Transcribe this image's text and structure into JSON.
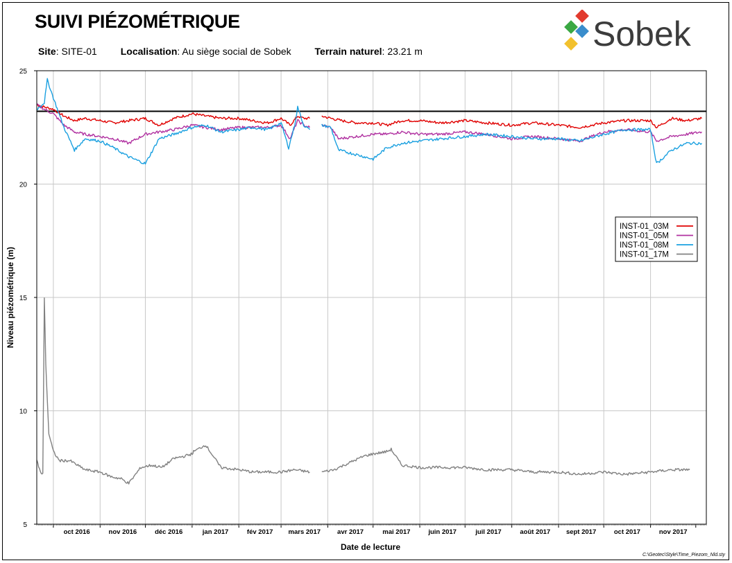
{
  "title": "SUIVI PIÉZOMÉTRIQUE",
  "info": {
    "site_label": "Site",
    "site_value": "SITE-01",
    "loc_label": "Localisation",
    "loc_value": "Au siège social de Sobek",
    "terrain_label": "Terrain naturel",
    "terrain_value": "23.21 m"
  },
  "logo": {
    "text": "Sobek",
    "colors": [
      "#e23b2e",
      "#3aa843",
      "#3a8dcc",
      "#f2c12e"
    ]
  },
  "footer": "C:\\Geotec\\Style\\Time_Piezom_Nld.sty",
  "chart_data": {
    "type": "line",
    "title": "",
    "xlabel": "Date de lecture",
    "ylabel": "Niveau piézométrique (m)",
    "xlim": [
      "2016-09-20",
      "2017-12-08"
    ],
    "ylim": [
      5,
      25
    ],
    "yticks": [
      5,
      10,
      15,
      20,
      25
    ],
    "xtick_labels": [
      "oct 2016",
      "nov 2016",
      "déc 2016",
      "jan 2017",
      "fév 2017",
      "mars 2017",
      "avr 2017",
      "mai 2017",
      "juin 2017",
      "juil 2017",
      "août 2017",
      "sept 2017",
      "oct 2017",
      "nov 2017"
    ],
    "xtick_dates": [
      "2016-10-01",
      "2016-11-01",
      "2016-12-01",
      "2017-01-01",
      "2017-02-01",
      "2017-03-01",
      "2017-04-01",
      "2017-05-01",
      "2017-06-01",
      "2017-07-01",
      "2017-08-01",
      "2017-09-01",
      "2017-10-01",
      "2017-11-01"
    ],
    "grid": true,
    "legend_position": "right",
    "reference_line": {
      "value": 23.21,
      "color": "#000000"
    },
    "series": [
      {
        "name": "INST-01_03M",
        "color": "#e00000",
        "x": [
          "2016-09-20",
          "2016-09-25",
          "2016-10-01",
          "2016-10-08",
          "2016-10-15",
          "2016-10-22",
          "2016-11-01",
          "2016-11-10",
          "2016-11-20",
          "2016-12-01",
          "2016-12-10",
          "2016-12-20",
          "2017-01-01",
          "2017-01-10",
          "2017-01-20",
          "2017-02-01",
          "2017-02-10",
          "2017-02-20",
          "2017-03-01",
          "2017-03-07",
          "2017-03-12",
          "2017-03-16",
          "2017-03-20",
          null,
          "2017-03-28",
          "2017-04-03",
          "2017-04-10",
          "2017-04-20",
          "2017-05-01",
          "2017-05-10",
          "2017-05-20",
          "2017-06-01",
          "2017-06-15",
          "2017-07-01",
          "2017-07-15",
          "2017-08-01",
          "2017-08-15",
          "2017-09-01",
          "2017-09-15",
          "2017-10-01",
          "2017-10-15",
          "2017-11-01",
          "2017-11-05",
          "2017-11-15",
          "2017-11-25",
          "2017-12-05"
        ],
        "y": [
          23.5,
          23.4,
          23.3,
          23.0,
          22.8,
          22.9,
          22.8,
          22.7,
          22.8,
          22.9,
          22.6,
          22.9,
          23.1,
          23.0,
          22.9,
          22.9,
          22.8,
          22.7,
          22.9,
          22.6,
          23.0,
          22.9,
          22.9,
          null,
          23.0,
          22.9,
          22.8,
          22.7,
          22.7,
          22.6,
          22.8,
          22.8,
          22.7,
          22.8,
          22.7,
          22.6,
          22.7,
          22.6,
          22.5,
          22.7,
          22.8,
          22.8,
          22.5,
          22.9,
          22.8,
          22.9
        ]
      },
      {
        "name": "INST-01_05M",
        "color": "#b030a0",
        "x": [
          "2016-09-20",
          "2016-09-25",
          "2016-10-01",
          "2016-10-08",
          "2016-10-15",
          "2016-10-22",
          "2016-11-01",
          "2016-11-10",
          "2016-11-20",
          "2016-12-01",
          "2016-12-10",
          "2016-12-20",
          "2017-01-01",
          "2017-01-10",
          "2017-01-20",
          "2017-02-01",
          "2017-02-10",
          "2017-02-20",
          "2017-03-01",
          "2017-03-07",
          "2017-03-12",
          "2017-03-16",
          "2017-03-20",
          null,
          "2017-03-28",
          "2017-04-03",
          "2017-04-08",
          "2017-04-20",
          "2017-05-01",
          "2017-05-10",
          "2017-05-20",
          "2017-06-01",
          "2017-06-15",
          "2017-07-01",
          "2017-07-15",
          "2017-08-01",
          "2017-08-15",
          "2017-09-01",
          "2017-09-15",
          "2017-10-01",
          "2017-10-15",
          "2017-11-01",
          "2017-11-05",
          "2017-11-15",
          "2017-11-25",
          "2017-12-05"
        ],
        "y": [
          23.5,
          23.3,
          23.1,
          22.6,
          22.3,
          22.2,
          22.1,
          22.0,
          21.8,
          22.2,
          22.3,
          22.4,
          22.6,
          22.5,
          22.4,
          22.5,
          22.5,
          22.5,
          22.6,
          22.0,
          22.8,
          22.6,
          22.5,
          null,
          22.6,
          22.5,
          22.0,
          22.1,
          22.2,
          22.2,
          22.3,
          22.2,
          22.2,
          22.3,
          22.2,
          22.0,
          22.1,
          22.0,
          21.9,
          22.3,
          22.4,
          22.3,
          21.9,
          22.1,
          22.2,
          22.3
        ]
      },
      {
        "name": "INST-01_08M",
        "color": "#1aa0e0",
        "x": [
          "2016-09-20",
          "2016-09-25",
          "2016-09-27",
          "2016-10-01",
          "2016-10-08",
          "2016-10-15",
          "2016-10-22",
          "2016-11-01",
          "2016-11-10",
          "2016-11-20",
          "2016-12-01",
          "2016-12-10",
          "2016-12-20",
          "2017-01-01",
          "2017-01-10",
          "2017-01-20",
          "2017-02-01",
          "2017-02-10",
          "2017-02-20",
          "2017-03-01",
          "2017-03-06",
          "2017-03-10",
          "2017-03-12",
          "2017-03-16",
          "2017-03-20",
          null,
          "2017-03-28",
          "2017-04-03",
          "2017-04-08",
          "2017-04-20",
          "2017-05-01",
          "2017-05-10",
          "2017-05-20",
          "2017-06-01",
          "2017-06-15",
          "2017-07-01",
          "2017-07-15",
          "2017-08-01",
          "2017-08-15",
          "2017-09-01",
          "2017-09-15",
          "2017-10-01",
          "2017-10-15",
          "2017-11-01",
          "2017-11-05",
          "2017-11-15",
          "2017-11-25",
          "2017-12-05"
        ],
        "y": [
          23.3,
          23.6,
          24.6,
          23.8,
          22.5,
          21.5,
          22.0,
          21.9,
          21.6,
          21.2,
          20.9,
          22.0,
          22.2,
          22.5,
          22.6,
          22.3,
          22.4,
          22.5,
          22.4,
          22.7,
          21.6,
          22.6,
          23.4,
          22.6,
          22.4,
          null,
          22.6,
          22.5,
          21.5,
          21.3,
          21.1,
          21.6,
          21.8,
          21.9,
          22.0,
          22.1,
          22.2,
          22.1,
          22.0,
          22.0,
          21.9,
          22.2,
          22.4,
          22.4,
          20.9,
          21.5,
          21.8,
          21.8
        ]
      },
      {
        "name": "INST-01_17M",
        "color": "#808080",
        "x": [
          "2016-09-20",
          "2016-09-23",
          "2016-09-24",
          "2016-09-25",
          "2016-09-26",
          "2016-09-28",
          "2016-10-01",
          "2016-10-05",
          "2016-10-12",
          "2016-10-22",
          "2016-11-01",
          "2016-11-08",
          "2016-11-15",
          "2016-11-20",
          "2016-11-28",
          "2016-12-05",
          "2016-12-12",
          "2016-12-20",
          "2016-12-27",
          "2017-01-01",
          "2017-01-02",
          "2017-01-10",
          "2017-01-20",
          "2017-02-01",
          "2017-02-10",
          "2017-02-20",
          "2017-03-01",
          "2017-03-10",
          "2017-03-20",
          null,
          "2017-03-28",
          "2017-04-05",
          "2017-04-15",
          "2017-04-25",
          "2017-05-01",
          "2017-05-10",
          "2017-05-13",
          "2017-05-20",
          "2017-06-01",
          "2017-06-15",
          "2017-07-01",
          "2017-07-15",
          "2017-08-01",
          "2017-08-15",
          "2017-09-01",
          "2017-09-15",
          "2017-10-01",
          "2017-10-15",
          "2017-11-01",
          "2017-11-15",
          "2017-11-27"
        ],
        "y": [
          7.8,
          7.2,
          7.2,
          15.0,
          12.0,
          9.0,
          8.2,
          7.8,
          7.8,
          7.4,
          7.3,
          7.1,
          7.0,
          6.8,
          7.5,
          7.6,
          7.5,
          7.9,
          8.0,
          8.1,
          8.2,
          8.5,
          7.5,
          7.4,
          7.3,
          7.3,
          7.3,
          7.4,
          7.3,
          null,
          7.3,
          7.4,
          7.7,
          8.0,
          8.1,
          8.2,
          8.3,
          7.6,
          7.5,
          7.5,
          7.5,
          7.4,
          7.4,
          7.3,
          7.3,
          7.2,
          7.3,
          7.2,
          7.3,
          7.4,
          7.4
        ]
      }
    ]
  }
}
